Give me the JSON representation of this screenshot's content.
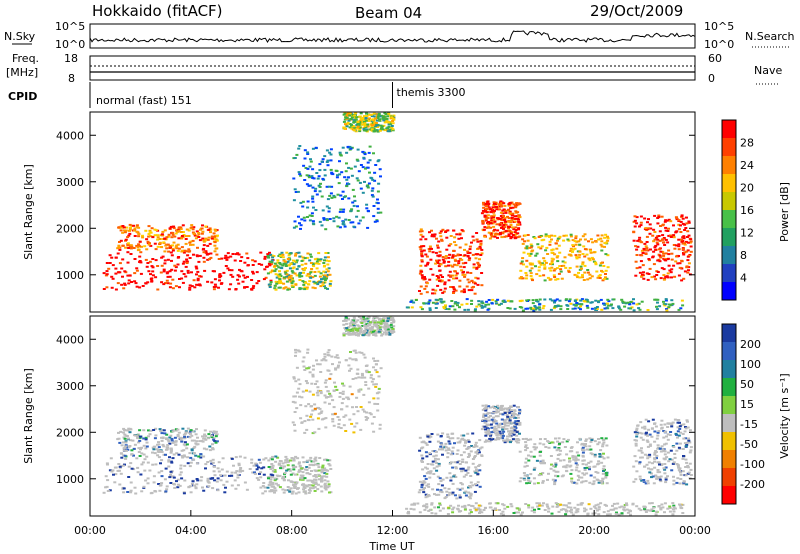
{
  "header": {
    "station": "Hokkaido (fitACF)",
    "beam": "Beam 04",
    "date": "29/Oct/2009"
  },
  "top_panels": {
    "nsky_label": "N.Sky",
    "nsky_ticks": [
      "10^5",
      "10^0"
    ],
    "nsearch_label": "N.Search",
    "nsearch_ticks": [
      "10^5",
      "10^0"
    ],
    "freq_label_line1": "Freq.",
    "freq_label_line2": "[MHz]",
    "freq_ticks": [
      "18",
      "8"
    ],
    "nave_label": "Nave",
    "nave_ticks": [
      "60",
      "0"
    ],
    "cpid_label": "CPID",
    "cpid_modes": [
      {
        "name": "normal (fast) 151",
        "start_hour": 0,
        "end_hour": 12
      },
      {
        "name": "themis 3300",
        "start_hour": 12,
        "end_hour": 24
      }
    ]
  },
  "chart_data": [
    {
      "type": "heatmap",
      "name": "power",
      "ylabel": "Slant Range [km]",
      "xlim": [
        0,
        24
      ],
      "ylim": [
        200,
        4500
      ],
      "yticks": [
        1000,
        2000,
        3000,
        4000
      ],
      "colorbar": {
        "label": "Power [dB]",
        "ticks": [
          "28",
          "24",
          "20",
          "16",
          "12",
          "8",
          "4"
        ],
        "colors": [
          "#ff0000",
          "#ff4000",
          "#ff8000",
          "#ffc000",
          "#c8c800",
          "#48c048",
          "#20a060",
          "#2080a0",
          "#2040c0",
          "#0000ff"
        ]
      }
    },
    {
      "type": "heatmap",
      "name": "velocity",
      "ylabel": "Slant Range [km]",
      "xlim": [
        0,
        24
      ],
      "ylim": [
        200,
        4500
      ],
      "yticks": [
        1000,
        2000,
        3000,
        4000
      ],
      "colorbar": {
        "label": "Velocity [m s⁻¹]",
        "ticks": [
          "200",
          "100",
          "50",
          "15",
          "-15",
          "-50",
          "-100",
          "-200"
        ],
        "colors": [
          "#1a3aa0",
          "#3060c0",
          "#2080a0",
          "#20b040",
          "#80d040",
          "#bebebe",
          "#f0c000",
          "#f08000",
          "#f04000",
          "#ff0000"
        ]
      }
    }
  ],
  "x_axis": {
    "label": "Time UT",
    "ticks": [
      "00:00",
      "04:00",
      "08:00",
      "12:00",
      "16:00",
      "20:00",
      "00:00"
    ]
  },
  "colors": {
    "power": [
      "#ff0000",
      "#ff6000",
      "#ffa000",
      "#ffd000",
      "#40b040",
      "#2090a0",
      "#0040ff"
    ],
    "velocity_gray": "#bebebe"
  }
}
